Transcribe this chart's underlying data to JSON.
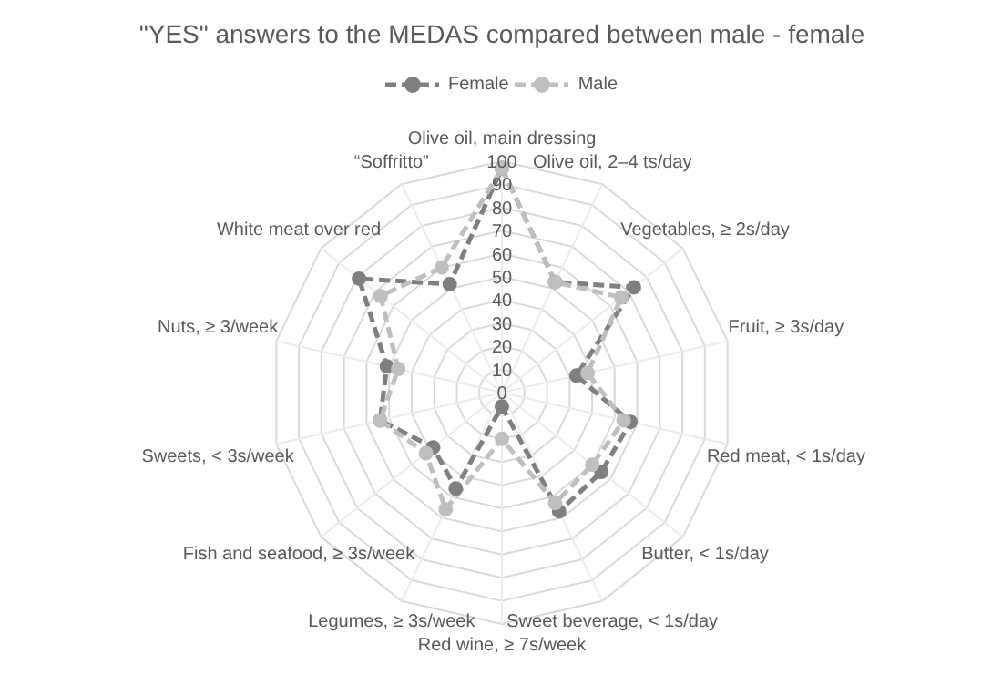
{
  "chart_data": {
    "type": "radar",
    "title": "\"YES\" answers to the MEDAS compared between male - female",
    "categories": [
      "Olive oil, main dressing",
      "Olive oil, 2–4 ts/day",
      "Vegetables, ≥ 2s/day",
      "Fruit, ≥ 3s/day",
      "Red meat, < 1s/day",
      "Butter, < 1s/day",
      "Sweet beverage, < 1s/day",
      "Red wine, ≥ 7s/week",
      "Legumes, ≥ 3s/week",
      "Fish and seafood, ≥ 3s/week",
      "Sweets, < 3s/week",
      "Nuts, ≥ 3/week",
      "White meat over red",
      "“Soffritto”"
    ],
    "series": [
      {
        "name": "Female",
        "color": "#7f7f7f",
        "values": [
          97,
          53,
          73,
          33,
          57,
          55,
          57,
          6,
          46,
          38,
          54,
          51,
          79,
          52
        ]
      },
      {
        "name": "Male",
        "color": "#bfbfbf",
        "values": [
          97,
          53,
          66,
          38,
          54,
          50,
          53,
          20,
          56,
          42,
          54,
          46,
          67,
          60
        ]
      }
    ],
    "ylim": [
      0,
      100
    ],
    "yticks": [
      0,
      10,
      20,
      30,
      40,
      50,
      60,
      70,
      80,
      90,
      100
    ],
    "legend": "top",
    "marker": "circle",
    "line_style": "dashed"
  }
}
